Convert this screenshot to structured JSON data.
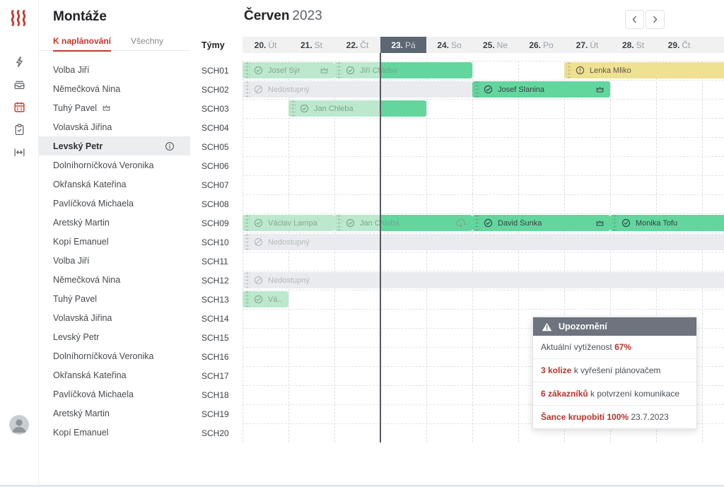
{
  "app": {
    "title": "Montáže"
  },
  "colors": {
    "accent_red": "#c5372c",
    "green_dark": "#63d69e",
    "green_light": "#bce8cd",
    "yellow": "#efe192",
    "gray_bar": "#e9ebee",
    "today_highlight": "#5d6773",
    "popup_header": "#6d747e",
    "alert_red": "#b4342c"
  },
  "rail": {
    "icons": [
      {
        "name": "flash-icon",
        "active": false
      },
      {
        "name": "tray-icon",
        "active": false
      },
      {
        "name": "calendar-icon",
        "active": true
      },
      {
        "name": "clipboard-check-icon",
        "active": false
      },
      {
        "name": "resize-horizontal-icon",
        "active": false
      }
    ]
  },
  "sidebar": {
    "tabs": [
      {
        "label": "K naplánování",
        "active": true
      },
      {
        "label": "Všechny",
        "active": false
      }
    ],
    "people": [
      {
        "name": "Volba Jiří"
      },
      {
        "name": "Němečková Nina"
      },
      {
        "name": "Tuhý Pavel",
        "crown": true
      },
      {
        "name": "Volavská Jiřina"
      },
      {
        "name": "Levský Petr",
        "selected": true,
        "info": true
      },
      {
        "name": "Dolníhorníčková Veronika"
      },
      {
        "name": "Okřanská Kateřina"
      },
      {
        "name": "Pavlíčková Michaela"
      },
      {
        "name": "Aretský Martin"
      },
      {
        "name": "Kopí Emanuel"
      },
      {
        "name": "Volba Jiří"
      },
      {
        "name": "Němečková Nina"
      },
      {
        "name": "Tuhý Pavel"
      },
      {
        "name": "Volavská Jiřina"
      },
      {
        "name": "Levský Petr"
      },
      {
        "name": "Dolníhorníčková Veronika"
      },
      {
        "name": "Okřanská Kateřina"
      },
      {
        "name": "Pavlíčková Michaela"
      },
      {
        "name": "Aretský Martin"
      },
      {
        "name": "Kopí Emanuel"
      }
    ]
  },
  "calendar": {
    "month": "Červen",
    "year": "2023",
    "teams_label": "Týmy",
    "today_index": 3,
    "days": [
      {
        "num": "20.",
        "wd": "Út"
      },
      {
        "num": "21.",
        "wd": "St"
      },
      {
        "num": "22.",
        "wd": "Čt"
      },
      {
        "num": "23.",
        "wd": "Pá",
        "today": true
      },
      {
        "num": "24.",
        "wd": "So"
      },
      {
        "num": "25.",
        "wd": "Ne"
      },
      {
        "num": "26.",
        "wd": "Po"
      },
      {
        "num": "27.",
        "wd": "Út"
      },
      {
        "num": "28.",
        "wd": "St"
      },
      {
        "num": "29.",
        "wd": "Čt"
      }
    ],
    "rows": [
      "SCH01",
      "SCH02",
      "SCH03",
      "SCH04",
      "SCH05",
      "SCH06",
      "SCH07",
      "SCH08",
      "SCH09",
      "SCH10",
      "SCH11",
      "SCH12",
      "SCH13",
      "SCH14",
      "SCH15",
      "SCH16",
      "SCH17",
      "SCH18",
      "SCH19",
      "SCH20"
    ],
    "bars": [
      {
        "row": 0,
        "start": 0,
        "end": 2,
        "kind": "light",
        "label": "Josef Sýr",
        "icon": "check-circle-icon",
        "right_icon": "crown-icon"
      },
      {
        "row": 0,
        "start": 2,
        "end": 5,
        "kind": "split",
        "label": "Jiří Chleba",
        "icon": "check-circle-icon"
      },
      {
        "row": 0,
        "start": 7,
        "end": 10.5,
        "kind": "yellow",
        "label": "Lenka Mliko",
        "icon": "alert-circle-icon"
      },
      {
        "row": 1,
        "start": 0,
        "end": 5,
        "kind": "unavail",
        "label": "Nedostupný",
        "icon": "blocked-circle-icon"
      },
      {
        "row": 1,
        "start": 5,
        "end": 8,
        "kind": "dark",
        "label": "Josef Slanina",
        "icon": "check-circle-icon",
        "right_icon": "crown-icon"
      },
      {
        "row": 2,
        "start": 1,
        "end": 4,
        "kind": "split",
        "label": "Jan Chleba",
        "icon": "check-circle-icon"
      },
      {
        "row": 8,
        "start": 0,
        "end": 2,
        "kind": "light",
        "label": "Václav Lampa",
        "icon": "check-circle-icon"
      },
      {
        "row": 8,
        "start": 2,
        "end": 5,
        "kind": "split",
        "label": "Jan Chleba",
        "icon": "check-circle-icon",
        "right_icon": "cloud-hail-icon"
      },
      {
        "row": 8,
        "start": 5,
        "end": 8,
        "kind": "dark",
        "label": "David Šunka",
        "icon": "check-circle-icon",
        "right_icon": "crown-icon"
      },
      {
        "row": 8,
        "start": 8,
        "end": 10.5,
        "kind": "dark",
        "label": "Monika Tofu",
        "icon": "check-circle-icon"
      },
      {
        "row": 9,
        "start": 0,
        "end": 10.5,
        "kind": "unavail",
        "label": "Nedostupný",
        "icon": "blocked-circle-icon"
      },
      {
        "row": 11,
        "start": 0,
        "end": 10.5,
        "kind": "unavail",
        "label": "Nedostupný",
        "icon": "blocked-circle-icon"
      },
      {
        "row": 12,
        "start": 0,
        "end": 1,
        "kind": "light",
        "label": "Vá..",
        "icon": "check-circle-icon"
      }
    ]
  },
  "nav": {
    "prev_icon": "chevron-left-icon",
    "next_icon": "chevron-right-icon"
  },
  "popup": {
    "title": "Upozornění",
    "icon": "warning-triangle-icon",
    "lines": [
      [
        {
          "text": "Aktuální vytíženost ",
          "red": false
        },
        {
          "text": "67%",
          "red": true
        }
      ],
      [
        {
          "text": "3 kolize",
          "red": true
        },
        {
          "text": " k vyřešení plánovačem",
          "red": false
        }
      ],
      [
        {
          "text": "6 zákazníků",
          "red": true
        },
        {
          "text": " k potvrzení komunikace",
          "red": false
        }
      ],
      [
        {
          "text": "Šance krupobití 100%",
          "red": true
        },
        {
          "text": " 23.7.2023",
          "red": false
        }
      ]
    ]
  }
}
